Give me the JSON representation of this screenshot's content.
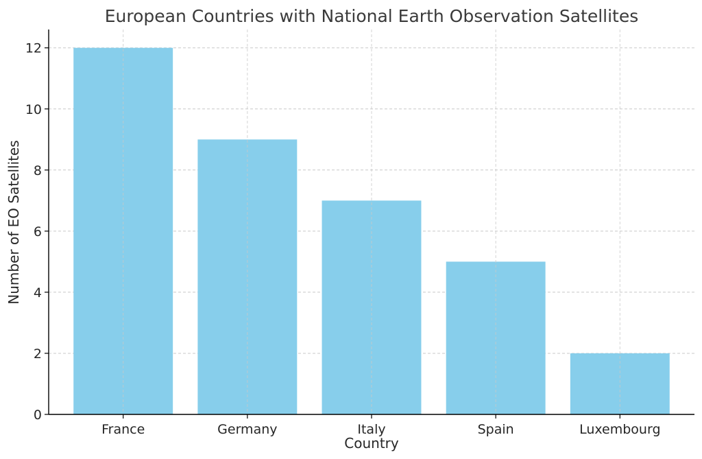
{
  "chart_data": {
    "type": "bar",
    "title": "European Countries with National Earth Observation Satellites",
    "xlabel": "Country",
    "ylabel": "Number of EO Satellites",
    "categories": [
      "France",
      "Germany",
      "Italy",
      "Spain",
      "Luxembourg"
    ],
    "values": [
      12,
      9,
      7,
      5,
      2
    ],
    "ylim": [
      0,
      12.6
    ],
    "yticks": [
      "0",
      "2",
      "4",
      "6",
      "8",
      "10",
      "12"
    ],
    "grid": true,
    "legend": "none",
    "colors": {
      "bar": "#87ceeb",
      "grid": "#c8c8c8",
      "axis": "#000000",
      "text": "#262626"
    }
  }
}
